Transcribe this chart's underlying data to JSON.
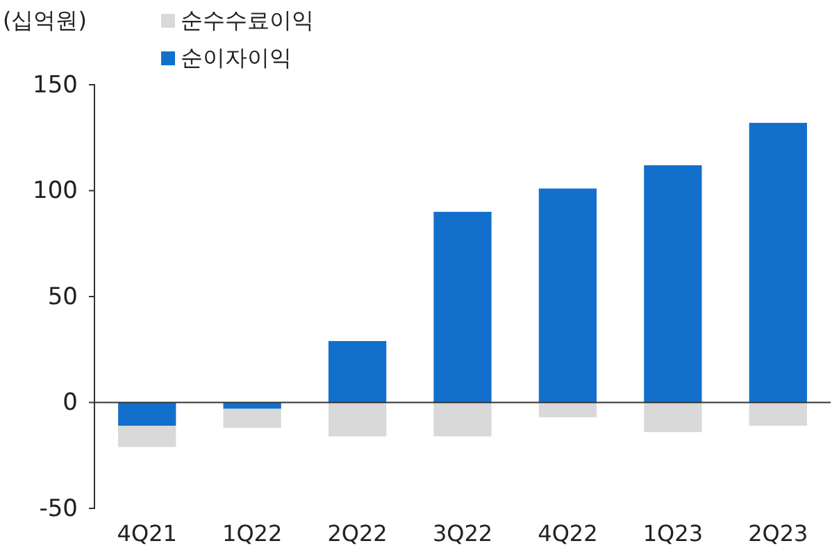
{
  "chart_data": {
    "type": "bar",
    "ylabel": "(십억원)",
    "stacked": true,
    "legend": "top left",
    "categories": [
      "4Q21",
      "1Q22",
      "2Q22",
      "3Q22",
      "4Q22",
      "1Q23",
      "2Q23"
    ],
    "series": [
      {
        "name": "순이자이익",
        "color": "#1270cc",
        "values": [
          -11,
          -3,
          29,
          90,
          101,
          112,
          132
        ]
      },
      {
        "name": "순수수료이익",
        "color": "#d9d9d9",
        "values": [
          -10,
          -9,
          -16,
          -16,
          -7,
          -14,
          -11
        ]
      }
    ],
    "ylim": [
      -50,
      150
    ],
    "yticks": [
      -50,
      0,
      50,
      100,
      150
    ]
  }
}
